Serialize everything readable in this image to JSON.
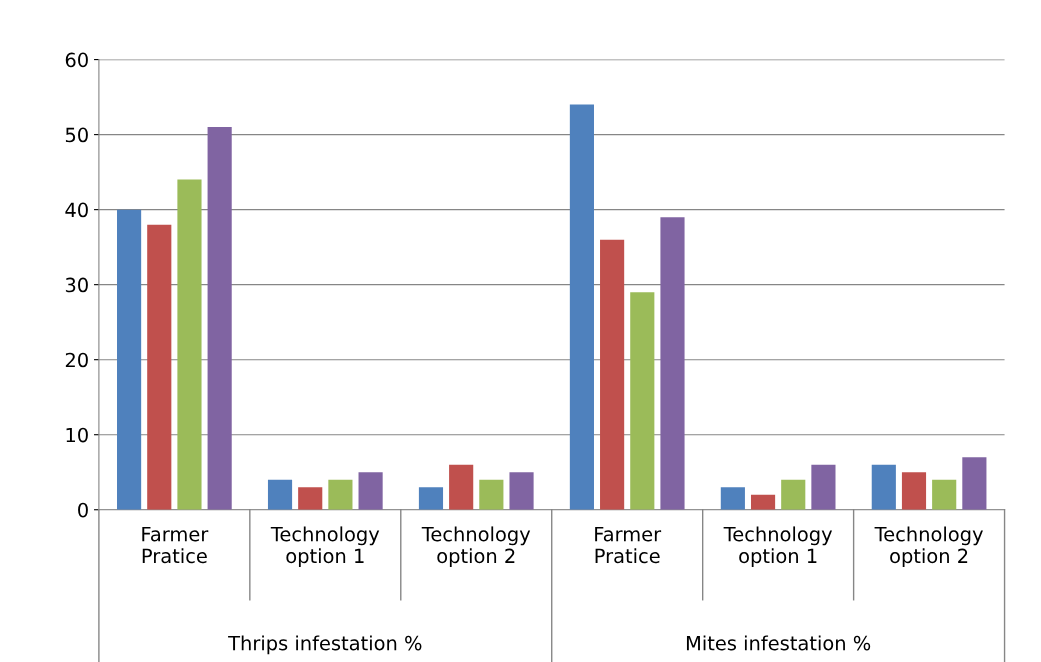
{
  "chart_data": {
    "type": "bar",
    "categories": [
      "Farmer\nPratice",
      "Technology\noption 1",
      "Technology\noption 2",
      "Farmer\nPratice",
      "Technology\noption 1",
      "Technology\noption 2"
    ],
    "series": [
      {
        "color": "#4f81bd",
        "values": [
          40,
          4,
          3,
          54,
          3,
          6
        ]
      },
      {
        "color": "#c0504d",
        "values": [
          38,
          3,
          6,
          36,
          2,
          5
        ]
      },
      {
        "color": "#9bbb59",
        "values": [
          44,
          4,
          4,
          29,
          4,
          4
        ]
      },
      {
        "color": "#8064a2",
        "values": [
          51,
          5,
          5,
          39,
          6,
          7
        ]
      }
    ],
    "ylim": [
      0,
      60
    ],
    "yticks": [
      0,
      10,
      20,
      30,
      40,
      50,
      60
    ],
    "grid": "y",
    "legend": false,
    "annotations": [
      "Thrips infestation %",
      "Mites infestation %"
    ]
  }
}
